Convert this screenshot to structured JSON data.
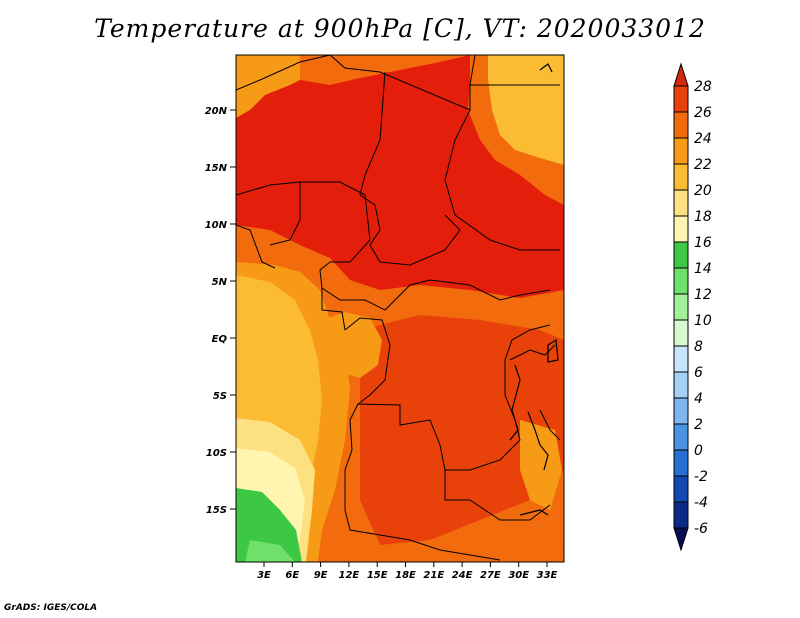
{
  "title": "Temperature at 900hPa [C], VT: 2020033012",
  "credit": "GrADS: IGES/COLA",
  "map": {
    "longitude_ticks": [
      "3E",
      "6E",
      "9E",
      "12E",
      "15E",
      "18E",
      "21E",
      "24E",
      "27E",
      "30E",
      "33E"
    ],
    "latitude_ticks": [
      "20N",
      "15N",
      "10N",
      "5N",
      "EQ",
      "5S",
      "10S",
      "15S"
    ]
  },
  "colorbar": {
    "levels": [
      "28",
      "26",
      "24",
      "22",
      "20",
      "18",
      "16",
      "14",
      "12",
      "10",
      "8",
      "6",
      "4",
      "2",
      "0",
      "-2",
      "-4",
      "-6"
    ],
    "colors": [
      "#d7280f",
      "#e8410a",
      "#f26b0d",
      "#f79a15",
      "#fbbc33",
      "#fde07f",
      "#fff5b0",
      "#3cc845",
      "#6fe06a",
      "#a4f09a",
      "#d8f8d0",
      "#c8e6fb",
      "#a6d1f7",
      "#7fb6f0",
      "#4a94e3",
      "#2670d4",
      "#1249b0",
      "#0b2c86",
      "#060f55"
    ],
    "colors_order": "top-to-bottom"
  },
  "colors": {
    "hot": "#e31e0b",
    "very_warm": "#e8410a",
    "warm": "#f26b0d",
    "mild": "#f79a15",
    "cool": "#fbbc33",
    "pale": "#fde07f",
    "lightest": "#fff5b0",
    "green": "#3cc845",
    "light_green": "#6fe06a"
  }
}
